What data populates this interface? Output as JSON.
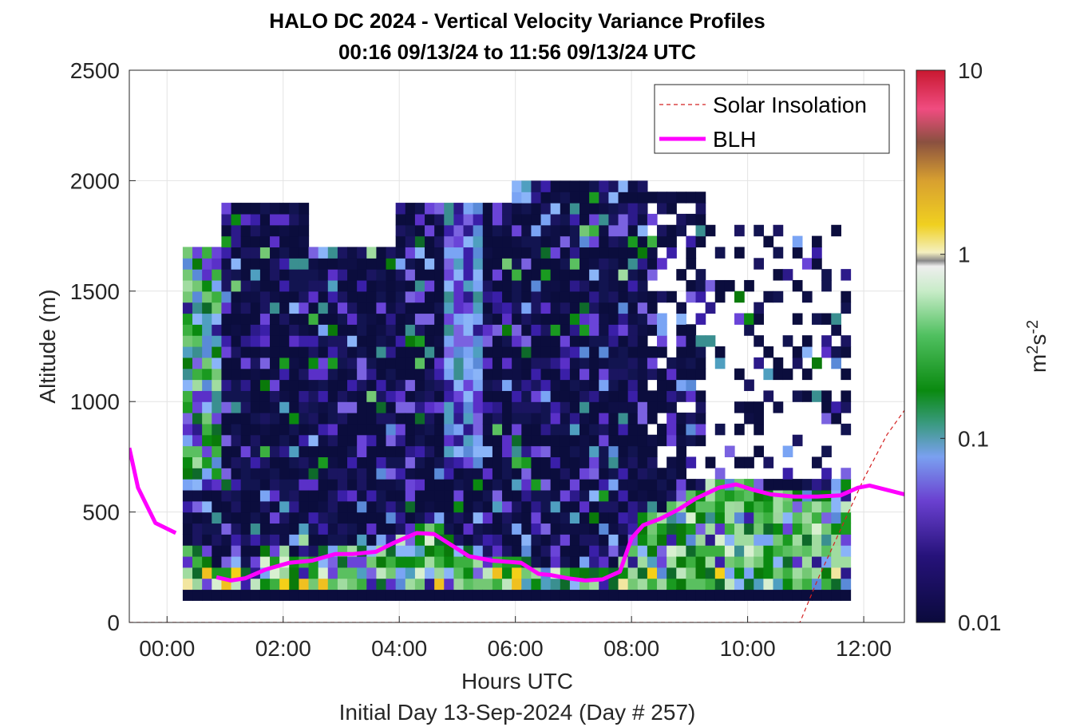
{
  "chart_data": {
    "type": "heatmap",
    "title": "HALO DC 2024 - Vertical Velocity Variance Profiles",
    "subtitle": "00:16 09/13/24 to 11:56 09/13/24  UTC",
    "xlabel": "Hours UTC",
    "xlabel2": "Initial Day 13-Sep-2024 (Day # 257)",
    "ylabel": "Altitude (m)",
    "colorbar_label_base": "m",
    "colorbar_label_sup1": "2",
    "colorbar_label_mid": "s",
    "colorbar_label_sup2": "-2",
    "xlim": [
      -0.65,
      12.7
    ],
    "ylim": [
      0,
      2500
    ],
    "x_ticks": [
      0,
      2,
      4,
      6,
      8,
      10,
      12
    ],
    "x_tick_labels": [
      "00:00",
      "02:00",
      "04:00",
      "06:00",
      "08:00",
      "10:00",
      "12:00"
    ],
    "y_ticks": [
      0,
      500,
      1000,
      1500,
      2000,
      2500
    ],
    "y_tick_labels": [
      "0",
      "500",
      "1000",
      "1500",
      "2000",
      "2500"
    ],
    "color_scale": "log",
    "clim": [
      0.01,
      10
    ],
    "colorbar_ticks": [
      0.01,
      0.1,
      1,
      10
    ],
    "colorbar_tick_labels": [
      "0.01",
      "0.1",
      "1",
      "10"
    ],
    "grid": true,
    "legend_position": "top-right",
    "legend": [
      {
        "label": "Solar Insolation",
        "style": "dashed",
        "color": "#d42020"
      },
      {
        "label": "BLH",
        "style": "solid",
        "color": "#ff00ff"
      }
    ],
    "heatmap": {
      "x_start": 0.27,
      "x_step": 0.1667,
      "y_start": 100,
      "y_step": 50,
      "columns": 69,
      "note_units": "vertical velocity variance, m2 s-2"
    },
    "blh": {
      "name": "BLH",
      "x": [
        -0.65,
        -0.5,
        -0.2,
        0.15,
        0.6,
        0.85,
        1.1,
        1.35,
        1.7,
        2.1,
        2.5,
        2.9,
        3.2,
        3.6,
        3.9,
        4.3,
        4.6,
        4.9,
        5.2,
        5.6,
        6.1,
        6.4,
        6.6,
        6.9,
        7.2,
        7.5,
        7.8,
        8.0,
        8.2,
        8.5,
        8.8,
        9.1,
        9.5,
        9.8,
        10.1,
        10.4,
        10.8,
        11.2,
        11.6,
        11.9,
        12.1,
        12.4,
        12.7
      ],
      "y": [
        790,
        610,
        450,
        405,
        null,
        205,
        190,
        200,
        240,
        270,
        280,
        310,
        310,
        320,
        360,
        405,
        400,
        350,
        300,
        280,
        270,
        220,
        215,
        200,
        190,
        195,
        230,
        380,
        440,
        470,
        510,
        560,
        610,
        625,
        600,
        580,
        570,
        570,
        575,
        610,
        620,
        600,
        580
      ]
    },
    "solar_insolation": {
      "name": "Solar Insolation",
      "x": [
        -0.65,
        10.9,
        11.2,
        11.6,
        12.0,
        12.4,
        12.7
      ],
      "y": [
        0,
        0,
        190,
        420,
        650,
        850,
        960
      ]
    }
  }
}
